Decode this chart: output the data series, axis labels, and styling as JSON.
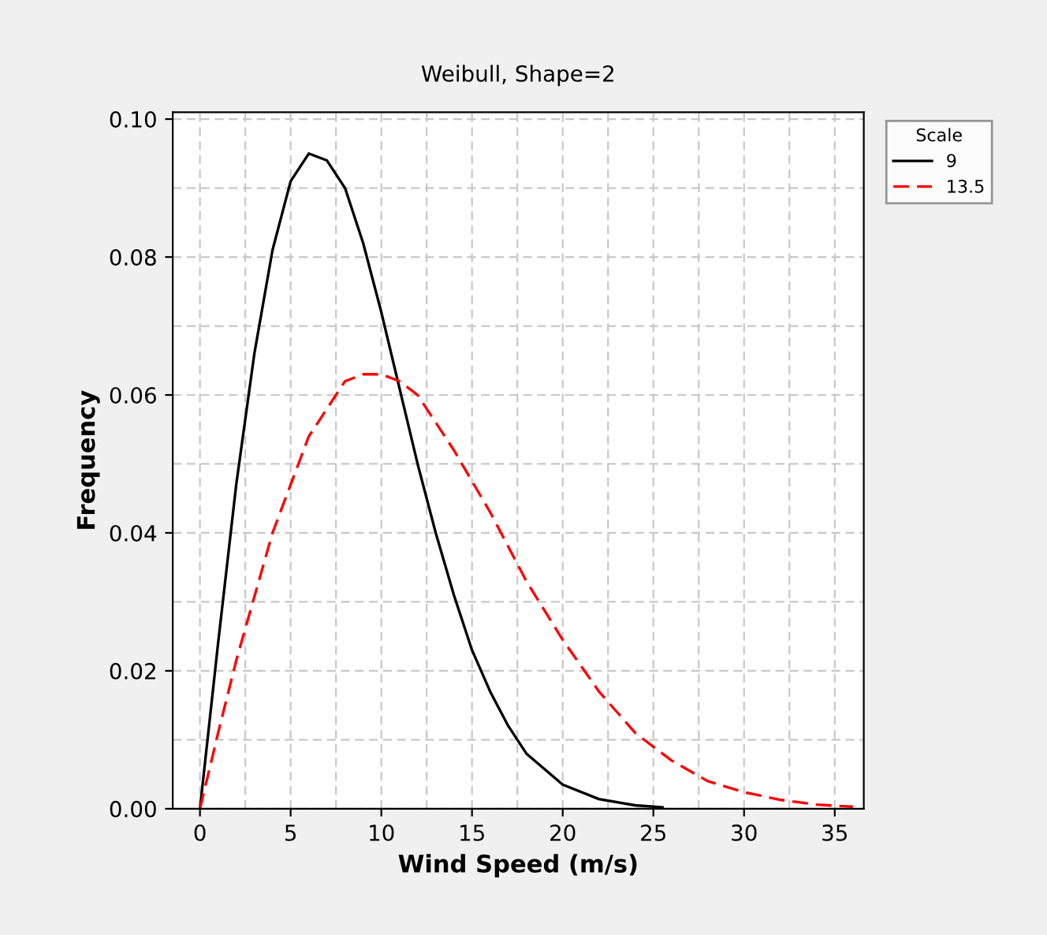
{
  "chart_data": {
    "type": "line",
    "title": "Weibull, Shape=2",
    "xlabel": "Wind Speed (m/s)",
    "ylabel": "Frequency",
    "legend_title": "Scale",
    "xlim": [
      -1.5,
      36.6
    ],
    "xticks": [
      0,
      5,
      10,
      15,
      20,
      25,
      30,
      35
    ],
    "ylim": [
      0,
      0.101
    ],
    "yticks": [
      {
        "value": 0,
        "label": "0.00"
      },
      {
        "value": 0.02,
        "label": "0.02"
      },
      {
        "value": 0.04,
        "label": "0.04"
      },
      {
        "value": 0.06,
        "label": "0.06"
      },
      {
        "value": 0.08,
        "label": "0.08"
      },
      {
        "value": 0.1,
        "label": "0.10"
      }
    ],
    "grid": true,
    "legend": "top right",
    "marker": "none",
    "series": [
      {
        "name": "9",
        "color": "#000000",
        "line_style": "solid",
        "x": [
          0,
          1,
          2,
          3,
          4,
          5,
          6,
          7,
          8,
          9,
          10,
          11,
          12,
          13,
          14,
          15,
          16,
          17,
          18,
          20,
          22,
          24,
          25.5
        ],
        "values": [
          0,
          0.024,
          0.047,
          0.066,
          0.081,
          0.091,
          0.095,
          0.094,
          0.09,
          0.082,
          0.072,
          0.061,
          0.05,
          0.04,
          0.031,
          0.023,
          0.017,
          0.012,
          0.008,
          0.0035,
          0.0014,
          0.0005,
          0.0002
        ]
      },
      {
        "name": "13.5",
        "color": "#ff0000",
        "line_style": "dashed",
        "x": [
          0,
          1,
          2,
          4,
          6,
          8,
          9,
          10,
          11,
          12,
          14,
          16,
          18,
          20,
          22,
          24,
          26,
          28,
          30,
          32,
          34,
          36
        ],
        "values": [
          0,
          0.011,
          0.0215,
          0.04,
          0.054,
          0.062,
          0.063,
          0.063,
          0.062,
          0.06,
          0.052,
          0.043,
          0.033,
          0.0245,
          0.017,
          0.011,
          0.007,
          0.004,
          0.0024,
          0.0013,
          0.0006,
          0.0003
        ]
      }
    ]
  }
}
